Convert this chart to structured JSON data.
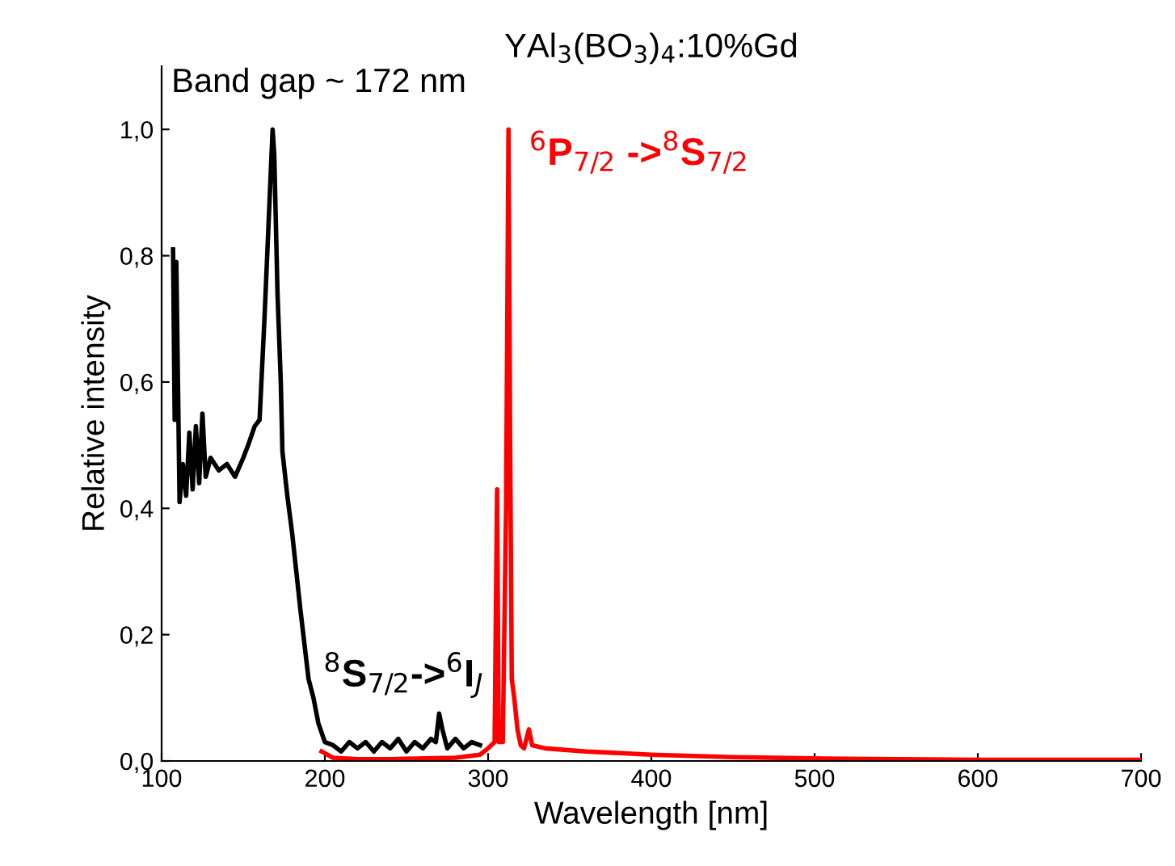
{
  "chart_data": {
    "type": "line",
    "title": "YAl$_{3}$(BO$_{3}$)$_{4}$:10%Gd",
    "xlabel": "Wavelength [nm]",
    "ylabel": "Relative intensity",
    "annotations": [
      "Band gap ~ 172 nm"
    ],
    "xlim": [
      100,
      700
    ],
    "xticks": [
      100,
      200,
      300,
      400,
      500,
      600,
      700
    ],
    "ylim": [
      0,
      1.1
    ],
    "yticks": [
      {
        "value": 0,
        "label": "0,0"
      },
      {
        "value": 0.2,
        "label": "0,2"
      },
      {
        "value": 0.4,
        "label": "0,4"
      },
      {
        "value": 0.6,
        "label": "0,6"
      },
      {
        "value": 0.8,
        "label": "0,8"
      },
      {
        "value": 1.0,
        "label": "1,0"
      }
    ],
    "grid": false,
    "legend": false,
    "marker": "none",
    "line_style": "solid",
    "series": [
      {
        "name": "$^{8}$S$_{7/2}$->$^{6}$I$_{J}$",
        "color": "#000000",
        "x": [
          107,
          108,
          109,
          110,
          111,
          113,
          115,
          117,
          119,
          121,
          123,
          125,
          127,
          130,
          135,
          140,
          145,
          150,
          153,
          157,
          160,
          163,
          166,
          168,
          169,
          170,
          171,
          173,
          174,
          177,
          180,
          185,
          190,
          193,
          196,
          200,
          205,
          210,
          215,
          220,
          225,
          230,
          235,
          240,
          245,
          250,
          255,
          260,
          265,
          268,
          270,
          272,
          275,
          280,
          285,
          290,
          295
        ],
        "values": [
          0.81,
          0.54,
          0.79,
          0.6,
          0.41,
          0.47,
          0.42,
          0.52,
          0.43,
          0.53,
          0.44,
          0.55,
          0.45,
          0.48,
          0.46,
          0.47,
          0.45,
          0.48,
          0.5,
          0.53,
          0.54,
          0.7,
          0.88,
          1.0,
          0.96,
          0.85,
          0.74,
          0.6,
          0.49,
          0.42,
          0.36,
          0.24,
          0.13,
          0.1,
          0.06,
          0.03,
          0.025,
          0.015,
          0.03,
          0.02,
          0.03,
          0.015,
          0.03,
          0.02,
          0.035,
          0.015,
          0.03,
          0.02,
          0.035,
          0.03,
          0.075,
          0.05,
          0.02,
          0.035,
          0.02,
          0.03,
          0.025
        ]
      },
      {
        "name": "$^{6}$P$_{7/2}$ ->$^{8}$S$_{7/2}$",
        "color": "#ff0000",
        "x": [
          198,
          205,
          220,
          240,
          260,
          280,
          295,
          300,
          304,
          305.5,
          306.5,
          309,
          311,
          312.5,
          313.5,
          314.5,
          316,
          318,
          320,
          322,
          325,
          327,
          335,
          360,
          400,
          450,
          500,
          600,
          700
        ],
        "values": [
          0.015,
          0.005,
          0.003,
          0.003,
          0.004,
          0.005,
          0.01,
          0.02,
          0.03,
          0.43,
          0.03,
          0.03,
          0.4,
          1.0,
          0.5,
          0.13,
          0.1,
          0.05,
          0.025,
          0.02,
          0.05,
          0.025,
          0.02,
          0.015,
          0.01,
          0.006,
          0.004,
          0.002,
          0.002
        ]
      }
    ]
  }
}
